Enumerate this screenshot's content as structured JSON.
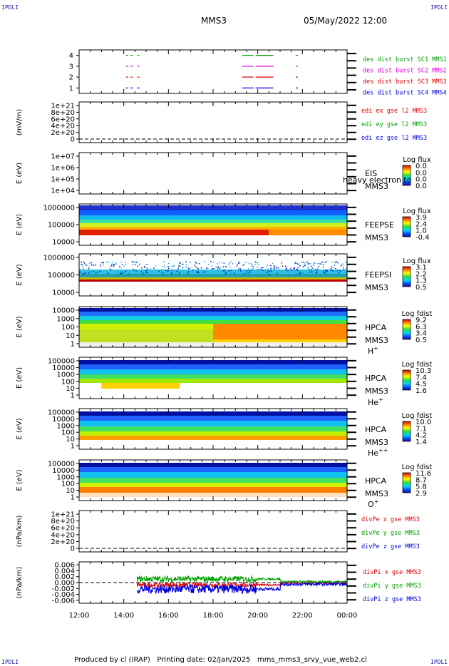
{
  "header": {
    "title": "MMS3",
    "date": "05/May/2022 12:00",
    "corner_label": "IPDLI"
  },
  "footer": {
    "produced_by": "Produced by cl (IRAP)",
    "printing_date": "Printing date: 02/Jan/2025",
    "filename": "mms_mms3_srvy_vue_web2.cl"
  },
  "chart_data": [
    {
      "type": "line",
      "panel": "burst",
      "ylim": [
        0.5,
        4.5
      ],
      "y_ticks": [
        "1",
        "2",
        "3",
        "4"
      ],
      "series": [
        {
          "name": "des dist burst SC1 MMS1",
          "color": "#00a000",
          "y": 4,
          "segments_hours": [
            [
              14.1,
              14.2
            ],
            [
              14.3,
              14.4
            ],
            [
              14.6,
              14.7
            ],
            [
              19.3,
              19.8
            ],
            [
              19.9,
              20.7
            ],
            [
              21.7,
              21.8
            ]
          ]
        },
        {
          "name": "des dist burst SC2 MMS2",
          "color": "#e000e0",
          "y": 3,
          "segments_hours": [
            [
              14.1,
              14.2
            ],
            [
              14.3,
              14.4
            ],
            [
              14.6,
              14.7
            ],
            [
              19.3,
              19.8
            ],
            [
              19.9,
              20.7
            ],
            [
              21.7,
              21.8
            ]
          ]
        },
        {
          "name": "des dist burst SC3 MMS3",
          "color": "#e00000",
          "y": 2,
          "segments_hours": [
            [
              14.1,
              14.2
            ],
            [
              14.3,
              14.4
            ],
            [
              14.6,
              14.7
            ],
            [
              19.3,
              19.8
            ],
            [
              19.9,
              20.7
            ],
            [
              21.7,
              21.8
            ]
          ]
        },
        {
          "name": "des dist burst SC4 MMS4",
          "color": "#0000e0",
          "y": 1,
          "segments_hours": [
            [
              14.1,
              14.2
            ],
            [
              14.3,
              14.4
            ],
            [
              14.6,
              14.7
            ],
            [
              19.3,
              19.8
            ],
            [
              19.9,
              20.7
            ],
            [
              21.7,
              21.8
            ]
          ]
        }
      ]
    },
    {
      "type": "line",
      "panel": "edi",
      "ylabel": "(mV/m)",
      "y_ticks": [
        "1e+21",
        "8e+20",
        "6e+20",
        "4e+20",
        "2e+20",
        "0"
      ],
      "series": [
        {
          "name": "edi ex gse l2 MMS3",
          "color": "#e00000"
        },
        {
          "name": "edi ey gse l2 MMS3",
          "color": "#00a000"
        },
        {
          "name": "edi ez gse l2 MMS3",
          "color": "#0000e0"
        }
      ]
    },
    {
      "type": "heatmap",
      "panel": "eis",
      "ylabel": "E (eV)",
      "y_ticks": [
        "1e+07",
        "1e+06",
        "1e+05",
        "1e+04"
      ],
      "instrument": "EIS",
      "spacecraft": "MMS3",
      "overlay_text": "heavy electron to",
      "colorbar_title": "Log flux",
      "colorbar_ticks": [
        "0.0",
        "0.0",
        "0.0",
        "0.0"
      ]
    },
    {
      "type": "heatmap",
      "panel": "feepse",
      "ylabel": "E (eV)",
      "y_ticks": [
        "1000000",
        "100000",
        "10000"
      ],
      "instrument": "FEEPSE",
      "spacecraft": "MMS3",
      "colorbar_title": "Log flux",
      "colorbar_ticks": [
        "3.9",
        "2.4",
        "1.0",
        "-0.4"
      ]
    },
    {
      "type": "heatmap",
      "panel": "feepsi",
      "ylabel": "E (eV)",
      "y_ticks": [
        "1000000",
        "100000",
        "10000"
      ],
      "instrument": "FEEPSI",
      "spacecraft": "MMS3",
      "colorbar_title": "Log flux",
      "colorbar_ticks": [
        "3.1",
        "2.2",
        "1.3",
        "0.5"
      ]
    },
    {
      "type": "heatmap",
      "panel": "hpca_h",
      "ylabel": "E (eV)",
      "y_ticks": [
        "10000",
        "1000",
        "100",
        "10",
        "1"
      ],
      "instrument": "HPCA",
      "spacecraft": "MMS3",
      "species": "H",
      "species_sup": "+",
      "colorbar_title": "Log fdist",
      "colorbar_ticks": [
        "9.2",
        "6.3",
        "3.4",
        "0.5"
      ]
    },
    {
      "type": "heatmap",
      "panel": "hpca_he",
      "ylabel": "E (eV)",
      "y_ticks": [
        "100000",
        "10000",
        "1000",
        "100",
        "10",
        "1"
      ],
      "instrument": "HPCA",
      "spacecraft": "MMS3",
      "species": "He",
      "species_sup": "+",
      "colorbar_title": "Log fdist",
      "colorbar_ticks": [
        "10.3",
        "7.4",
        "4.5",
        "1.6"
      ]
    },
    {
      "type": "heatmap",
      "panel": "hpca_hepp",
      "ylabel": "E (eV)",
      "y_ticks": [
        "100000",
        "10000",
        "1000",
        "100",
        "10",
        "1"
      ],
      "instrument": "HPCA",
      "spacecraft": "MMS3",
      "species": "He",
      "species_sup": "++",
      "colorbar_title": "Log fdist",
      "colorbar_ticks": [
        "10.0",
        "7.1",
        "4.2",
        "1.4"
      ]
    },
    {
      "type": "heatmap",
      "panel": "hpca_o",
      "ylabel": "E (eV)",
      "y_ticks": [
        "100000",
        "10000",
        "1000",
        "100",
        "10",
        "1"
      ],
      "instrument": "HPCA",
      "spacecraft": "MMS3",
      "species": "O",
      "species_sup": "+",
      "colorbar_title": "Log fdist",
      "colorbar_ticks": [
        "11.6",
        "8.7",
        "5.8",
        "2.9"
      ]
    },
    {
      "type": "line",
      "panel": "divpe",
      "ylabel": "(nPa/km)",
      "y_ticks": [
        "1e+21",
        "8e+20",
        "6e+20",
        "4e+20",
        "2e+20",
        "0"
      ],
      "series": [
        {
          "name": "divPe x gse MMS3",
          "color": "#e00000"
        },
        {
          "name": "divPe y gse MMS3",
          "color": "#00a000"
        },
        {
          "name": "divPe z gse MMS3",
          "color": "#0000e0"
        }
      ]
    },
    {
      "type": "line",
      "panel": "divpi",
      "ylabel": "(nPa/km)",
      "ylim": [
        -0.007,
        0.007
      ],
      "y_ticks": [
        "0.006",
        "0.004",
        "0.002",
        "0.000",
        "-0.002",
        "-0.004",
        "-0.006"
      ],
      "x_ticks": [
        "12:00",
        "14:00",
        "16:00",
        "18:00",
        "20:00",
        "22:00",
        "00:00"
      ],
      "data_start_hours": 14.6,
      "series": [
        {
          "name": "divPi x gse MMS3",
          "color": "#e00000",
          "mean": -0.0008,
          "spread": 0.0008
        },
        {
          "name": "divPi y gse MMS3",
          "color": "#00a000",
          "mean": 0.0012,
          "spread": 0.001
        },
        {
          "name": "divPi z gse MMS3",
          "color": "#0000e0",
          "mean": -0.0022,
          "spread": 0.0015
        }
      ]
    }
  ]
}
